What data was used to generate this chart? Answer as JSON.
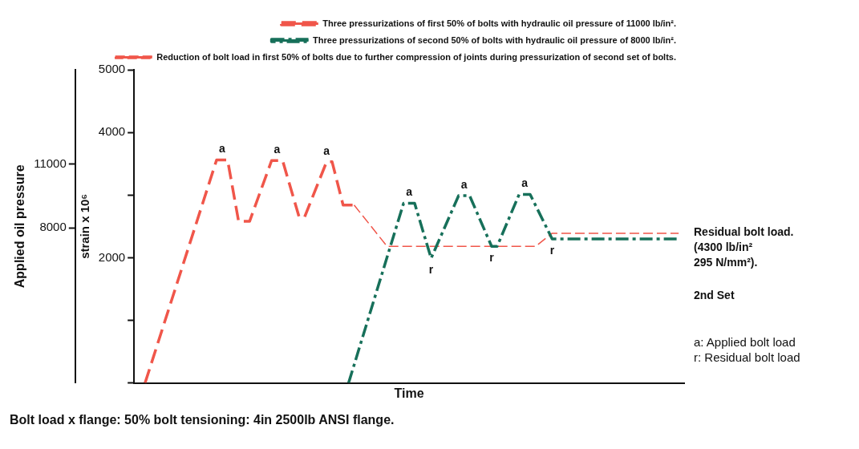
{
  "chart_data": {
    "type": "line",
    "title": "Bolt load x flange: 50% bolt tensioning: 4in 2500lb ANSI flange.",
    "xlabel": "Time",
    "ylabel": "strain x 10⁶",
    "y2label": "Applied oil pressure",
    "categories": [
      null,
      null,
      null,
      null,
      null,
      null,
      null,
      null,
      null,
      null,
      null,
      null,
      null,
      null,
      null,
      null,
      null,
      null,
      null,
      null,
      null,
      null,
      null,
      null,
      null,
      null,
      null,
      null,
      null,
      null,
      null,
      null,
      null,
      null,
      null,
      null,
      null,
      null,
      null,
      null,
      null,
      null,
      null,
      null,
      null,
      null,
      null,
      null,
      null,
      null,
      null,
      null,
      null,
      null,
      null,
      null,
      null,
      null,
      null,
      null,
      null,
      null,
      null,
      null,
      null,
      null,
      null,
      null,
      null,
      null,
      null,
      null,
      null,
      null,
      null,
      null,
      null,
      null,
      null,
      null,
      null,
      null,
      null,
      null,
      null,
      null,
      null,
      null,
      null,
      null,
      null,
      null,
      null,
      null,
      null,
      null,
      null,
      null,
      null,
      null,
      null
    ],
    "ylim": [
      0,
      5000
    ],
    "yticks": [
      {
        "value": 0,
        "label": null
      },
      {
        "value": 1000,
        "label": null
      },
      2000,
      {
        "value": 3000,
        "label": null
      },
      4000,
      5000
    ],
    "y2lim": [
      650,
      15480
    ],
    "y2ticks": [
      8000,
      11000
    ],
    "tick_labels": "y",
    "grid": false,
    "legend": "top right",
    "marker": "none",
    "series": [
      {
        "name": "Three pressurizations of first 50% of bolts with hydraulic oil pressure of 11000 lb/in².",
        "color": "#f0564a",
        "line_style": "dashed",
        "values": [
          null,
          null,
          0,
          null,
          null,
          null,
          null,
          null,
          null,
          null,
          null,
          null,
          null,
          null,
          null,
          3560,
          3560,
          3560,
          null,
          2580,
          null,
          2580,
          null,
          null,
          null,
          3550,
          3550,
          3550,
          null,
          null,
          2650,
          2650,
          null,
          null,
          null,
          3530,
          3530,
          null,
          2840,
          null,
          2840,
          null,
          null,
          null,
          null,
          null,
          null,
          null,
          null,
          null,
          null,
          null,
          null,
          null,
          null,
          null,
          null,
          null,
          null,
          null,
          null,
          null,
          null,
          null,
          null,
          null,
          null,
          null,
          null,
          null,
          null,
          null,
          null,
          null,
          null,
          null,
          null,
          null,
          null,
          null,
          null,
          null,
          null,
          null,
          null,
          null,
          null,
          null,
          null,
          null,
          null,
          null,
          null,
          null,
          null,
          null,
          null,
          null,
          null,
          null,
          null
        ],
        "value_labels": [
          null,
          null,
          null,
          null,
          null,
          null,
          null,
          null,
          null,
          null,
          null,
          null,
          null,
          null,
          null,
          null,
          "a",
          null,
          null,
          null,
          null,
          null,
          null,
          null,
          null,
          null,
          "a",
          null,
          null,
          null,
          null,
          null,
          null,
          null,
          null,
          "a",
          null,
          null,
          null,
          null,
          null,
          null,
          null,
          null,
          null,
          null,
          null,
          null,
          null,
          null,
          null,
          null,
          null,
          null,
          null,
          null,
          null,
          null,
          null,
          null,
          null,
          null,
          null,
          null,
          null,
          null,
          null,
          null,
          null,
          null,
          null,
          null,
          null,
          null,
          null,
          null,
          null,
          null,
          null,
          null,
          null,
          null,
          null,
          null,
          null,
          null,
          null,
          null,
          null,
          null,
          null,
          null,
          null,
          null,
          null,
          null,
          null,
          null,
          null,
          null,
          null
        ]
      },
      {
        "name": "Three pressurizations of second 50% of bolts with hydraulic oil pressure of 8000 lb/in².",
        "color": "#17705a",
        "line_style": "dashed",
        "values": [
          null,
          null,
          null,
          null,
          null,
          null,
          null,
          null,
          null,
          null,
          null,
          null,
          null,
          null,
          null,
          null,
          null,
          null,
          null,
          null,
          null,
          null,
          null,
          null,
          null,
          null,
          null,
          null,
          null,
          null,
          null,
          null,
          null,
          null,
          null,
          null,
          null,
          null,
          null,
          0,
          null,
          null,
          null,
          null,
          null,
          null,
          null,
          null,
          null,
          2870,
          2870,
          2870,
          null,
          null,
          1990,
          null,
          null,
          null,
          null,
          2990,
          2990,
          2990,
          null,
          null,
          null,
          2180,
          2180,
          null,
          null,
          null,
          3010,
          3010,
          3010,
          null,
          null,
          null,
          2300,
          null,
          null,
          null,
          null,
          null,
          null,
          null,
          null,
          null,
          null,
          null,
          null,
          null,
          null,
          null,
          null,
          null,
          null,
          null,
          null,
          null,
          null,
          2300,
          null
        ],
        "value_labels": [
          null,
          null,
          null,
          null,
          null,
          null,
          null,
          null,
          null,
          null,
          null,
          null,
          null,
          null,
          null,
          null,
          null,
          null,
          null,
          null,
          null,
          null,
          null,
          null,
          null,
          null,
          null,
          null,
          null,
          null,
          null,
          null,
          null,
          null,
          null,
          null,
          null,
          null,
          null,
          null,
          null,
          null,
          null,
          null,
          null,
          null,
          null,
          null,
          null,
          null,
          "a",
          null,
          null,
          null,
          "r",
          null,
          null,
          null,
          null,
          null,
          "a",
          null,
          null,
          null,
          null,
          "r",
          null,
          null,
          null,
          null,
          null,
          "a",
          null,
          null,
          null,
          null,
          "r",
          null,
          null,
          null,
          null,
          null,
          null,
          null,
          null,
          null,
          null,
          null,
          null,
          null,
          null,
          null,
          null,
          null,
          null,
          null,
          null,
          null,
          null,
          null,
          null
        ]
      },
      {
        "name": "Reduction of bolt load in first 50% of bolts due to further compression of joints during pressurization of second set of bolts.",
        "color": "#f0564a",
        "line_style": "dashed",
        "values": [
          null,
          null,
          null,
          null,
          null,
          null,
          null,
          null,
          null,
          null,
          null,
          null,
          null,
          null,
          null,
          null,
          null,
          null,
          null,
          null,
          null,
          null,
          null,
          null,
          null,
          null,
          null,
          null,
          null,
          null,
          null,
          null,
          null,
          null,
          null,
          null,
          null,
          null,
          null,
          null,
          2840,
          null,
          null,
          null,
          null,
          null,
          2180,
          null,
          null,
          null,
          null,
          null,
          null,
          null,
          null,
          null,
          null,
          null,
          null,
          null,
          null,
          null,
          null,
          null,
          null,
          null,
          null,
          null,
          null,
          null,
          null,
          null,
          null,
          2180,
          null,
          null,
          2390,
          null,
          null,
          null,
          null,
          null,
          null,
          null,
          null,
          null,
          null,
          null,
          null,
          null,
          null,
          null,
          null,
          null,
          null,
          null,
          null,
          null,
          null,
          2390,
          null
        ]
      }
    ],
    "annotations": [
      "Residual bolt load.\n(4300 lb/in²\n295 N/mm²).",
      "2nd Set",
      "a: Applied bolt load\nr: Residual bolt load"
    ]
  }
}
